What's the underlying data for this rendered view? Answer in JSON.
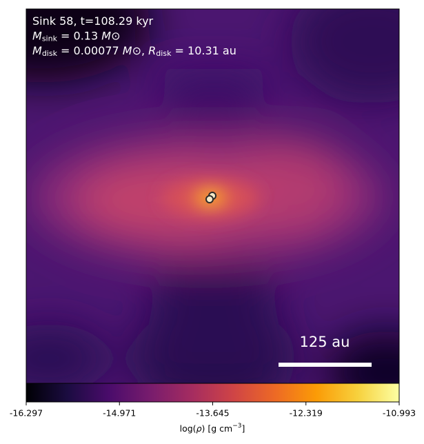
{
  "chart_data": {
    "type": "image",
    "annotations": [
      {
        "parts": [
          "Sink 58, t=108.29 kyr"
        ]
      },
      {
        "parts": [
          "M",
          "sink",
          " = 0.13 ",
          "M",
          "⊙"
        ]
      },
      {
        "parts": [
          "M",
          "disk",
          " = 0.00077 ",
          "M",
          "⊙",
          ", ",
          "R",
          "disk",
          " = 10.31 au"
        ]
      }
    ],
    "scale_bar_label": "125 au",
    "colorbar_label": {
      "parts": [
        "log(",
        "ρ",
        ") [g cm",
        "−3",
        "]"
      ]
    },
    "colormap": "inferno",
    "clim": [
      -16.297,
      -10.993
    ],
    "cticks": [
      -16.297,
      -14.971,
      -13.645,
      -12.319,
      -10.993
    ]
  }
}
